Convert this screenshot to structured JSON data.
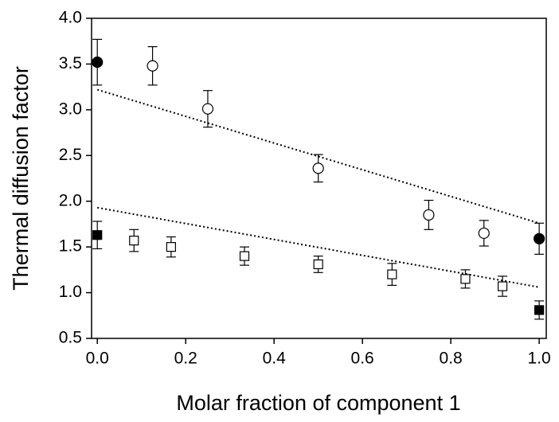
{
  "chart_data": {
    "type": "scatter",
    "x_label": "Molar fraction of component 1",
    "y_label": "Thermal diffusion factor",
    "xlim": [
      -0.013,
      1.016
    ],
    "ylim": [
      0.5,
      4.0
    ],
    "xticks": [
      {
        "value": 0,
        "label": "0.0"
      },
      0.2,
      0.4,
      0.6,
      0.8,
      {
        "value": 1,
        "label": "1.0"
      }
    ],
    "yticks": [
      {
        "value": 0.5,
        "label": "0.5"
      },
      {
        "value": 1,
        "label": "1.0"
      },
      1.5,
      {
        "value": 2,
        "label": "2.0"
      },
      2.5,
      {
        "value": 3,
        "label": "3.0"
      },
      3.5,
      {
        "value": 4,
        "label": "4.0"
      }
    ],
    "series": [
      {
        "marker": "open-circle",
        "x": [
          0.125,
          0.25,
          0.5,
          0.75,
          0.875
        ],
        "values": [
          3.48,
          3.01,
          2.36,
          1.85,
          1.65
        ],
        "errors": [
          0.21,
          0.2,
          0.15,
          0.16,
          0.14
        ]
      },
      {
        "marker": "filled-circle",
        "x": [
          0,
          1
        ],
        "values": [
          3.52,
          1.59
        ],
        "errors": [
          0.25,
          0.17
        ]
      },
      {
        "marker": "open-square",
        "x": [
          0.083,
          0.167,
          0.333,
          0.5,
          0.667,
          0.833,
          0.917
        ],
        "values": [
          1.57,
          1.5,
          1.4,
          1.31,
          1.2,
          1.15,
          1.07
        ],
        "errors": [
          0.12,
          0.11,
          0.1,
          0.09,
          0.12,
          0.1,
          0.11
        ]
      },
      {
        "marker": "filled-square",
        "x": [
          0,
          1
        ],
        "values": [
          1.63,
          0.81
        ],
        "errors": [
          0.15,
          0.1
        ]
      },
      {
        "marker": "dotted-line",
        "x": [
          0,
          1
        ],
        "values": [
          3.22,
          1.76
        ]
      },
      {
        "marker": "dotted-line",
        "x": [
          0,
          1
        ],
        "values": [
          1.93,
          1.06
        ]
      }
    ]
  }
}
